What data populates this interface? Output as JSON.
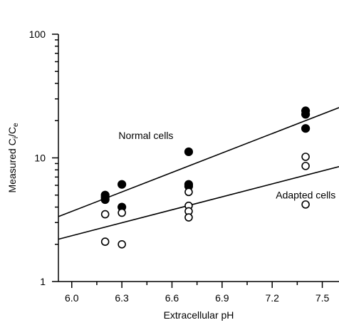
{
  "chart_data": {
    "type": "scatter",
    "title": "",
    "xlabel": "Extracellular pH",
    "ylabel": {
      "base": "Measured C",
      "sub1": "i",
      "sep": "/C",
      "sub2": "e"
    },
    "xlim": [
      5.92,
      7.6
    ],
    "ylim": [
      1,
      100
    ],
    "y_scale": "log",
    "grid": false,
    "x_ticks": [
      {
        "value": 6.0,
        "label": "6.0"
      },
      {
        "value": 6.3,
        "label": "6.3"
      },
      {
        "value": 6.6,
        "label": "6.6"
      },
      {
        "value": 6.9,
        "label": "6.9"
      },
      {
        "value": 7.2,
        "label": "7.2"
      },
      {
        "value": 7.5,
        "label": "7.5"
      }
    ],
    "y_ticks": [
      {
        "value": 1,
        "label": "1"
      },
      {
        "value": 10,
        "label": "10"
      },
      {
        "value": 100,
        "label": "100"
      }
    ],
    "series": [
      {
        "name": "Normal cells",
        "marker": "filled-circle",
        "color": "#000000",
        "points": [
          {
            "x": 6.2,
            "y": 5.0
          },
          {
            "x": 6.2,
            "y": 4.8
          },
          {
            "x": 6.2,
            "y": 4.6
          },
          {
            "x": 6.3,
            "y": 6.1
          },
          {
            "x": 6.3,
            "y": 4.0
          },
          {
            "x": 6.7,
            "y": 11.2
          },
          {
            "x": 6.7,
            "y": 6.1
          },
          {
            "x": 6.7,
            "y": 5.9
          },
          {
            "x": 7.4,
            "y": 24.0
          },
          {
            "x": 7.4,
            "y": 22.5
          },
          {
            "x": 7.4,
            "y": 17.3
          }
        ],
        "fit": {
          "x": [
            5.92,
            7.6
          ],
          "y": [
            3.35,
            25.5
          ]
        },
        "label": "Normal cells"
      },
      {
        "name": "Adapted cells",
        "marker": "open-circle",
        "color": "#000000",
        "points": [
          {
            "x": 6.2,
            "y": 3.5
          },
          {
            "x": 6.2,
            "y": 2.1
          },
          {
            "x": 6.3,
            "y": 3.6
          },
          {
            "x": 6.3,
            "y": 2.0
          },
          {
            "x": 6.7,
            "y": 5.3
          },
          {
            "x": 6.7,
            "y": 4.1
          },
          {
            "x": 6.7,
            "y": 3.7
          },
          {
            "x": 6.7,
            "y": 3.3
          },
          {
            "x": 7.4,
            "y": 10.2
          },
          {
            "x": 7.4,
            "y": 8.6
          },
          {
            "x": 7.4,
            "y": 4.2
          }
        ],
        "fit": {
          "x": [
            5.92,
            7.6
          ],
          "y": [
            2.2,
            8.5
          ]
        },
        "label": "Adapted cells"
      }
    ]
  }
}
